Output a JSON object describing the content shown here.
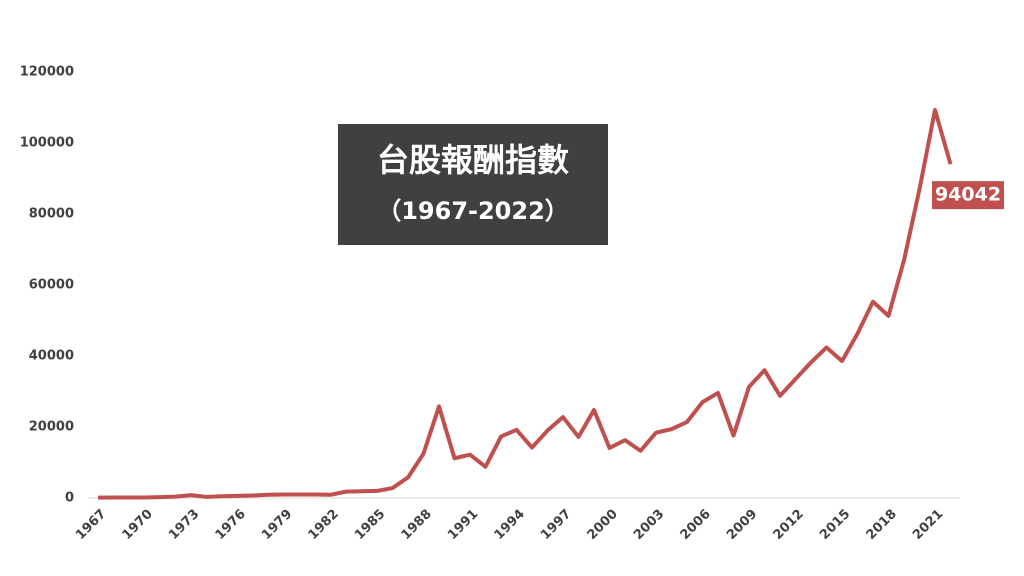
{
  "chart_data": {
    "type": "line",
    "title": "台股報酬指數",
    "subtitle": "（1967-2022）",
    "x": [
      1967,
      1968,
      1969,
      1970,
      1971,
      1972,
      1973,
      1974,
      1975,
      1976,
      1977,
      1978,
      1979,
      1980,
      1981,
      1982,
      1983,
      1984,
      1985,
      1986,
      1987,
      1988,
      1989,
      1990,
      1991,
      1992,
      1993,
      1994,
      1995,
      1996,
      1997,
      1998,
      1999,
      2000,
      2001,
      2002,
      2003,
      2004,
      2005,
      2006,
      2007,
      2008,
      2009,
      2010,
      2011,
      2012,
      2013,
      2014,
      2015,
      2016,
      2017,
      2018,
      2019,
      2020,
      2021,
      2022
    ],
    "series": [
      {
        "name": "台股報酬指數",
        "color": "#c0504d",
        "values": [
          100,
          150,
          150,
          150,
          250,
          400,
          800,
          300,
          500,
          600,
          700,
          900,
          1000,
          1000,
          1000,
          900,
          1800,
          1900,
          2000,
          2800,
          5800,
          12500,
          25800,
          11200,
          12200,
          8800,
          17300,
          19200,
          14200,
          19000,
          22800,
          17200,
          24800,
          14100,
          16300,
          13300,
          18400,
          19400,
          21400,
          27000,
          29600,
          17600,
          31300,
          36000,
          28800,
          33500,
          38200,
          42400,
          38600,
          46300,
          55300,
          51300,
          67000,
          87000,
          109300,
          94042
        ]
      }
    ],
    "xlim": [
      1967,
      2022
    ],
    "xticks": [
      1967,
      1970,
      1973,
      1976,
      1979,
      1982,
      1985,
      1988,
      1991,
      1994,
      1997,
      2000,
      2003,
      2006,
      2009,
      2012,
      2015,
      2018,
      2021
    ],
    "ylim": [
      0,
      120000
    ],
    "yticks": [
      0,
      20000,
      40000,
      60000,
      80000,
      100000,
      120000
    ],
    "grid": false
  }
}
